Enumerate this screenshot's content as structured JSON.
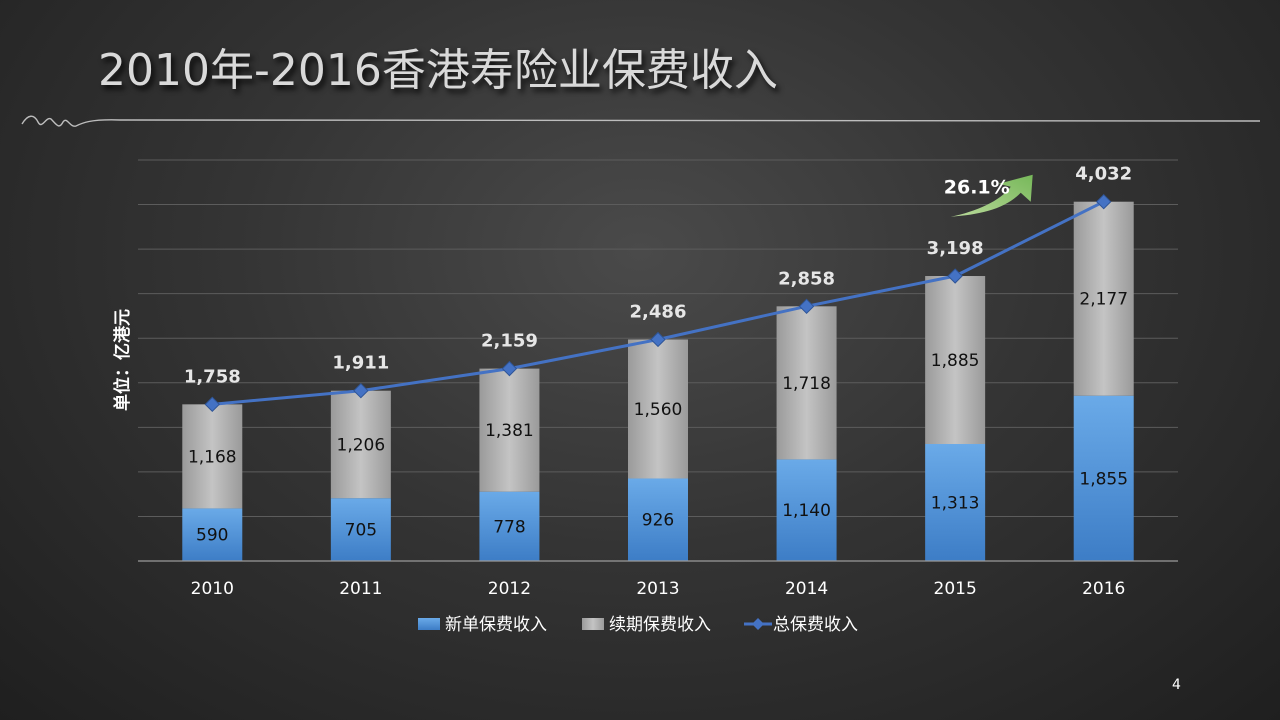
{
  "slide": {
    "title": "2010年-2016香港寿险业保费收入",
    "page_number": "4"
  },
  "chart_data": {
    "type": "bar",
    "stacked": true,
    "categories": [
      "2010",
      "2011",
      "2012",
      "2013",
      "2014",
      "2015",
      "2016"
    ],
    "series": [
      {
        "name": "新单保费收入",
        "type": "bar",
        "color": "#5b9bd5",
        "values": [
          590,
          705,
          778,
          926,
          1140,
          1313,
          1855
        ],
        "labels": [
          "590",
          "705",
          "778",
          "926",
          "1,140",
          "1,313",
          "1,855"
        ]
      },
      {
        "name": "续期保费收入",
        "type": "bar",
        "color": "#a6a6a6",
        "values": [
          1168,
          1206,
          1381,
          1560,
          1718,
          1885,
          2177
        ],
        "labels": [
          "1,168",
          "1,206",
          "1,381",
          "1,560",
          "1,718",
          "1,885",
          "2,177"
        ]
      },
      {
        "name": "总保费收入",
        "type": "line",
        "color": "#4472c4",
        "values": [
          1758,
          1911,
          2159,
          2486,
          2858,
          3198,
          4032
        ],
        "labels": [
          "1,758",
          "1,911",
          "2,159",
          "2,486",
          "2,858",
          "3,198",
          "4,032"
        ]
      }
    ],
    "ylabel": "单位：亿港元",
    "ylim": [
      0,
      4500
    ],
    "grid": true,
    "legend": "bottom",
    "annotation": {
      "text": "26.1%",
      "at_category": "2016",
      "icon": "green-curved-arrow-icon"
    }
  }
}
